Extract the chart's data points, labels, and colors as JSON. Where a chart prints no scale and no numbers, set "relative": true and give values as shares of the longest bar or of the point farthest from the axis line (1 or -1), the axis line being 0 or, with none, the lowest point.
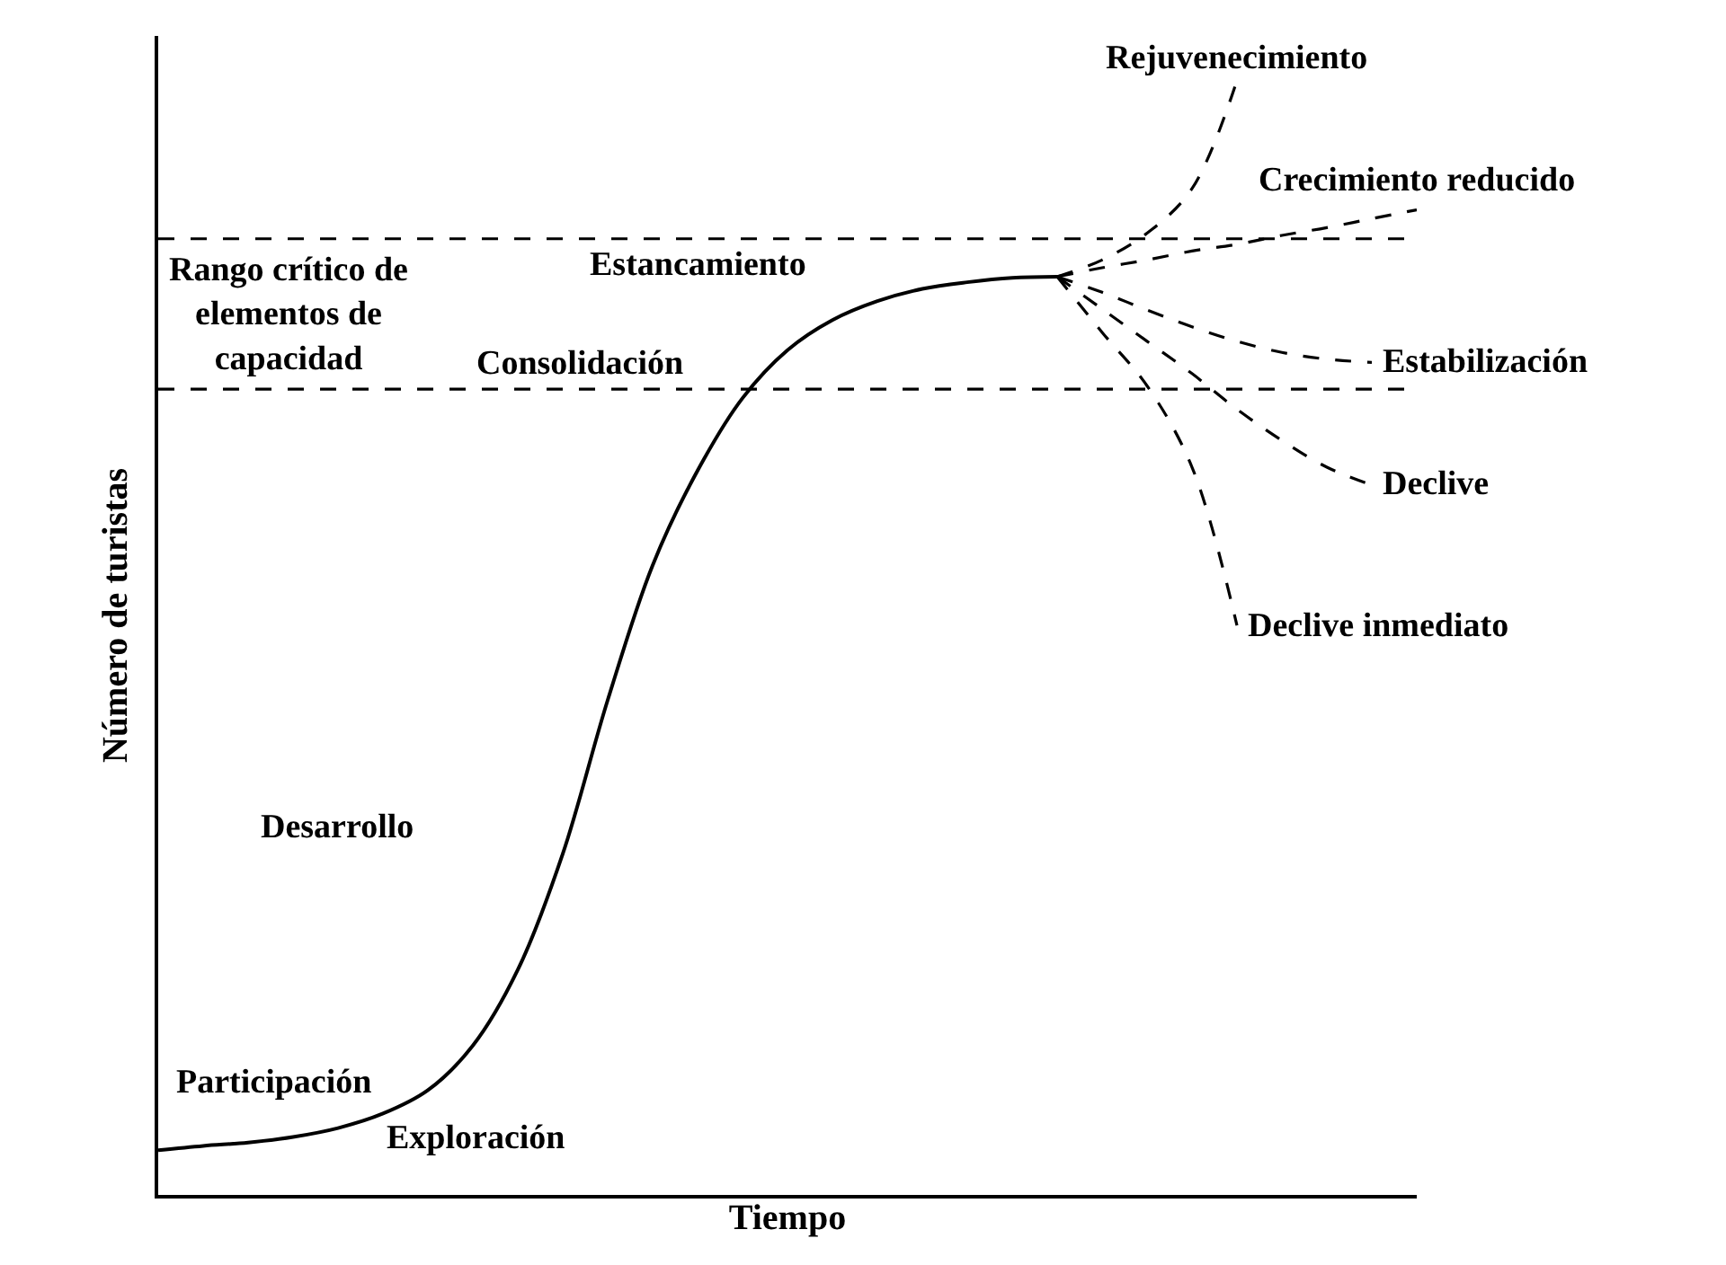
{
  "chart_data": {
    "type": "line",
    "relative": true,
    "xlabel": "Tiempo",
    "ylabel": "Número de turistas",
    "categories": [
      null,
      null,
      null,
      null,
      null,
      null,
      null,
      null,
      null,
      null,
      null,
      null,
      null,
      null,
      null,
      null,
      null,
      null,
      null,
      null,
      null,
      null,
      null,
      null,
      null,
      null,
      null,
      null,
      null
    ],
    "series": [
      {
        "color": "#000000",
        "line_style": "solid",
        "values": [
          0.04,
          0.044,
          0.047,
          0.052,
          0.06,
          0.073,
          0.094,
          0.134,
          0.202,
          0.306,
          0.444,
          0.565,
          0.65,
          0.715,
          0.758,
          0.785,
          0.802,
          0.813,
          0.819,
          0.823,
          0.824,
          null,
          null,
          null,
          null,
          null,
          null,
          null,
          null
        ]
      },
      {
        "name": "Rejuvenecimiento",
        "color": "#000000",
        "line_style": "dashed",
        "values": [
          null,
          null,
          null,
          null,
          null,
          null,
          null,
          null,
          null,
          null,
          null,
          null,
          null,
          null,
          null,
          null,
          null,
          null,
          null,
          null,
          0.824,
          0.839,
          0.863,
          0.903,
          1.0,
          null,
          null,
          null,
          null
        ]
      },
      {
        "name": "Crecimiento reducido",
        "color": "#000000",
        "line_style": "dashed",
        "values": [
          null,
          null,
          null,
          null,
          null,
          null,
          null,
          null,
          null,
          null,
          null,
          null,
          null,
          null,
          null,
          null,
          null,
          null,
          null,
          null,
          0.824,
          0.832,
          0.839,
          0.847,
          0.853,
          0.861,
          0.868,
          0.876,
          0.884
        ]
      },
      {
        "name": "Estabilización",
        "color": "#000000",
        "line_style": "dashed",
        "values": [
          null,
          null,
          null,
          null,
          null,
          null,
          null,
          null,
          null,
          null,
          null,
          null,
          null,
          null,
          null,
          null,
          null,
          null,
          null,
          null,
          0.824,
          0.81,
          0.794,
          0.779,
          0.766,
          0.756,
          0.75,
          0.747,
          null
        ]
      },
      {
        "name": "Declive",
        "color": "#000000",
        "line_style": "dashed",
        "values": [
          null,
          null,
          null,
          null,
          null,
          null,
          null,
          null,
          null,
          null,
          null,
          null,
          null,
          null,
          null,
          null,
          null,
          null,
          null,
          null,
          0.824,
          0.795,
          0.766,
          0.737,
          0.705,
          0.677,
          0.653,
          0.637,
          null
        ]
      },
      {
        "name": "Declive inmediato",
        "color": "#000000",
        "line_style": "dashed",
        "values": [
          null,
          null,
          null,
          null,
          null,
          null,
          null,
          null,
          null,
          null,
          null,
          null,
          null,
          null,
          null,
          null,
          null,
          null,
          null,
          null,
          0.824,
          0.774,
          0.726,
          0.653,
          0.511,
          null,
          null,
          null,
          null
        ]
      }
    ],
    "ref_lines": [
      {
        "axis": "y",
        "value": 0.858,
        "color": "#000000",
        "line_style": "dashed",
        "label": "Rango crítico de elementos de capacidad"
      },
      {
        "axis": "y",
        "value": 0.723,
        "color": "#000000",
        "line_style": "dashed"
      }
    ],
    "annotations": [
      "Exploración",
      "Participación",
      "Desarrollo",
      "Consolidación",
      "Estancamiento"
    ],
    "legend": false
  }
}
